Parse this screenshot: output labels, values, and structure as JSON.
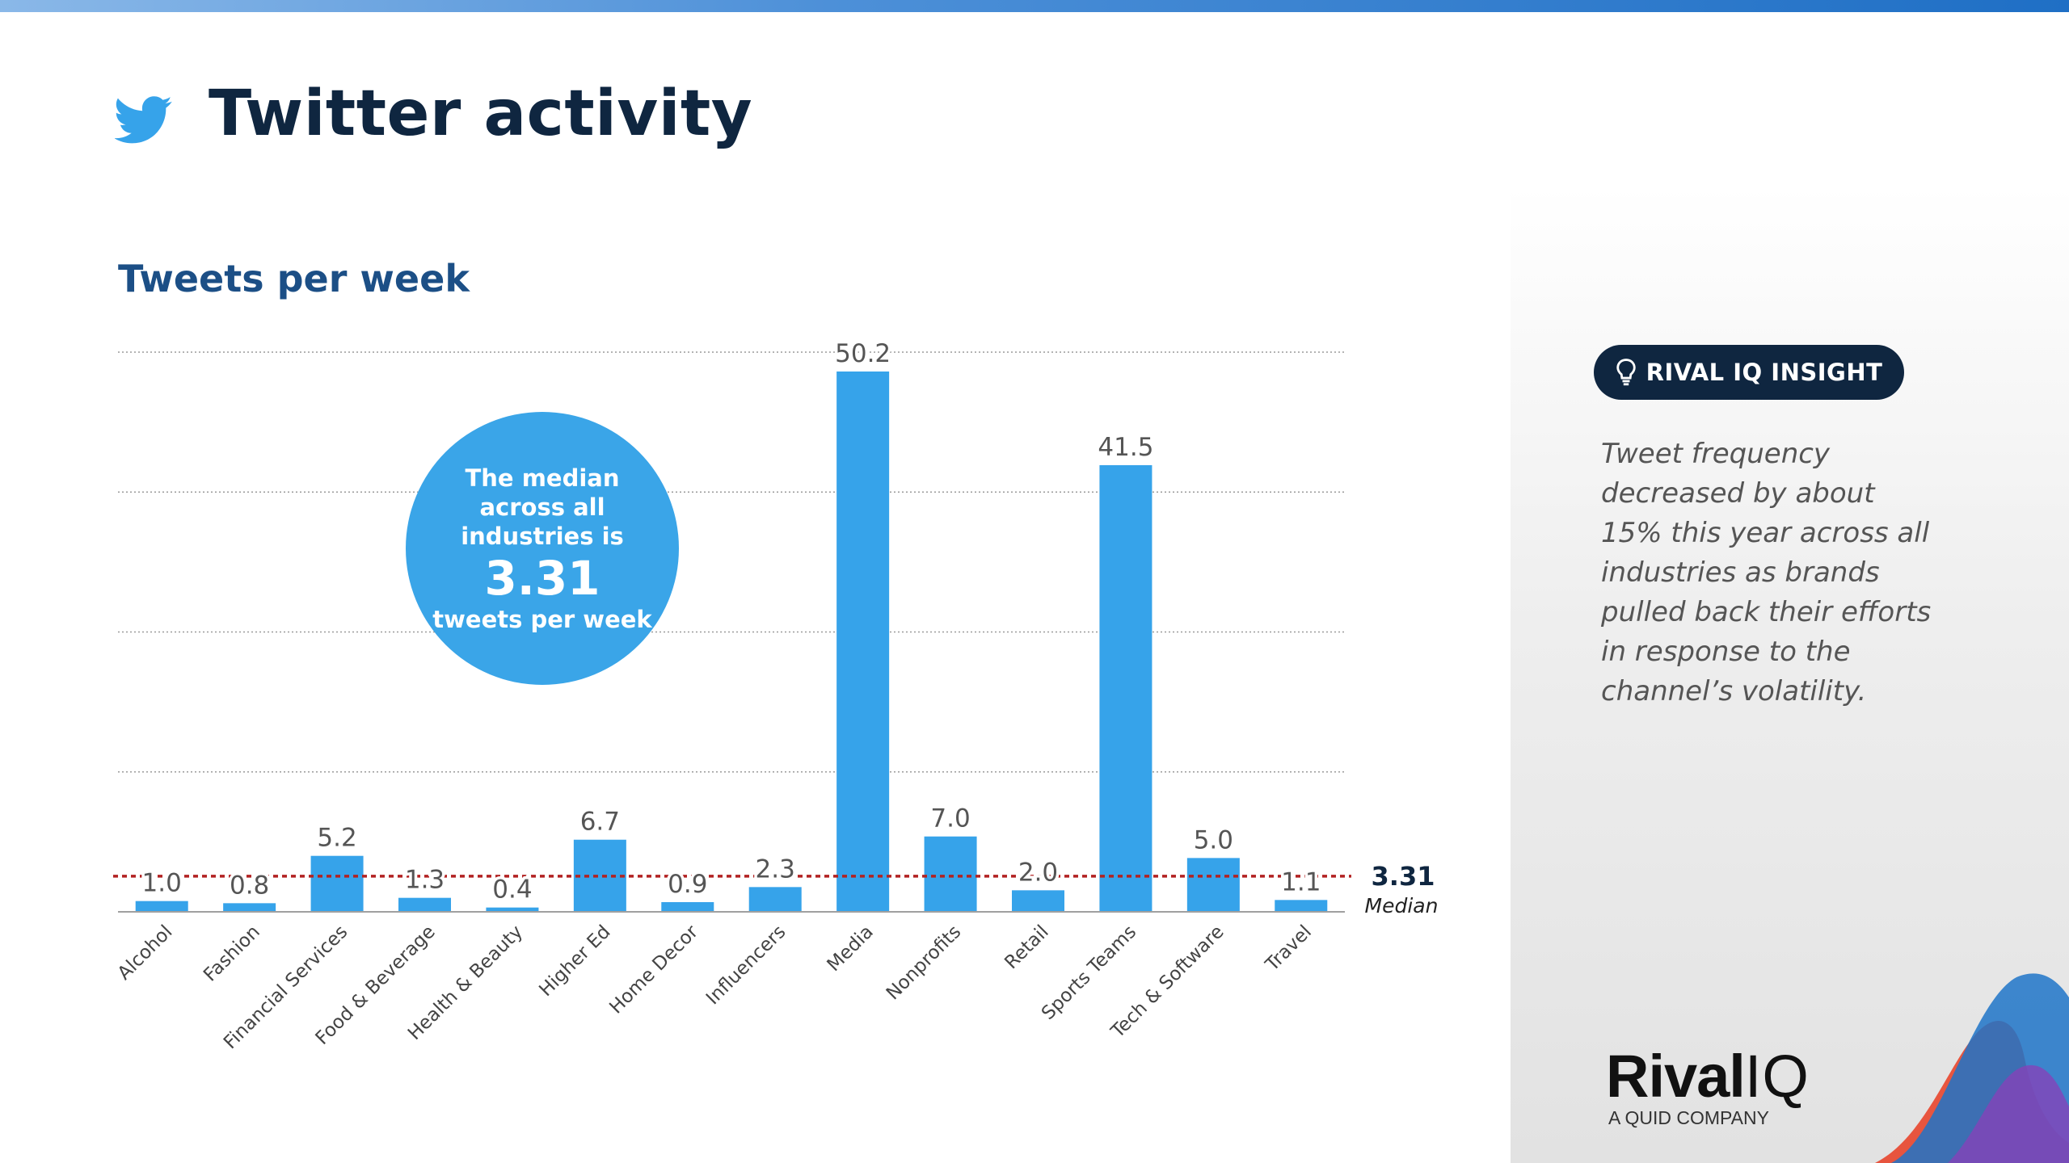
{
  "header": {
    "title": "Twitter activity",
    "subtitle": "Tweets per week"
  },
  "callout": {
    "line1": "The median across all industries is",
    "value": "3.31",
    "line3": "tweets per week"
  },
  "insight": {
    "badge": "RIVAL IQ INSIGHT",
    "text": "Tweet frequency decreased by about 15% this year across all industries as brands pulled back their efforts in response to the channel’s volatility."
  },
  "brand": {
    "name_part1": "Rival",
    "name_part2": "IQ",
    "tagline": "A QUID COMPANY"
  },
  "colors": {
    "bar": "#36a3ea",
    "median_line": "#b22222",
    "title": "#0f2640",
    "subtitle": "#1c4f86"
  },
  "chart_data": {
    "type": "bar",
    "title": "Tweets per week",
    "xlabel": "",
    "ylabel": "",
    "ylim": [
      0,
      52
    ],
    "grid": true,
    "categories": [
      "Alcohol",
      "Fashion",
      "Financial Services",
      "Food & Beverage",
      "Health & Beauty",
      "Higher Ed",
      "Home Decor",
      "Influencers",
      "Media",
      "Nonprofits",
      "Retail",
      "Sports Teams",
      "Tech & Software",
      "Travel"
    ],
    "values": [
      1.0,
      0.8,
      5.2,
      1.3,
      0.4,
      6.7,
      0.9,
      2.3,
      50.2,
      7.0,
      2.0,
      41.5,
      5.0,
      1.1
    ],
    "value_labels": [
      "1.0",
      "0.8",
      "5.2",
      "1.3",
      "0.4",
      "6.7",
      "0.9",
      "2.3",
      "50.2",
      "7.0",
      "2.0",
      "41.5",
      "5.0",
      "1.1"
    ],
    "median": {
      "value": 3.31,
      "label": "3.31",
      "caption": "Median"
    }
  }
}
